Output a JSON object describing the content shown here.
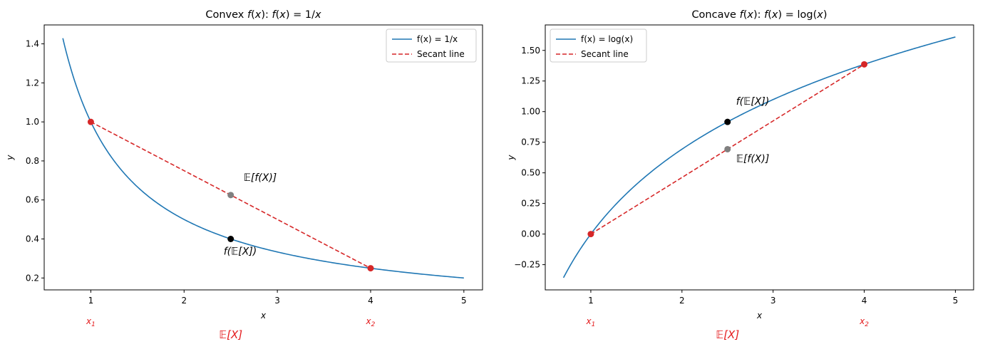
{
  "chart_data": [
    {
      "type": "line",
      "title": "Convex f(x): f(x) = 1/x",
      "title_parts": [
        "Convex ",
        "f",
        "(",
        "x",
        "): ",
        "f",
        "(",
        "x",
        ") = 1/",
        "x"
      ],
      "xlabel": "x",
      "ylabel": "y",
      "xlim": [
        0.5,
        5.2
      ],
      "ylim": [
        0.139,
        1.497
      ],
      "xticks": [
        1,
        2,
        3,
        4,
        5
      ],
      "xtick_labels": [
        "1",
        "2",
        "3",
        "4",
        "5"
      ],
      "yticks": [
        0.2,
        0.4,
        0.6,
        0.8,
        1.0,
        1.2,
        1.4
      ],
      "ytick_labels": [
        "0.2",
        "0.4",
        "0.6",
        "0.8",
        "1.0",
        "1.2",
        "1.4"
      ],
      "function": "reciprocal",
      "curve_domain": [
        0.7,
        5.0
      ],
      "x1": 1,
      "x2": 4,
      "ex": 2.5,
      "secant": {
        "x": [
          1,
          4
        ],
        "y": [
          1.0,
          0.25
        ]
      },
      "points": {
        "endpoints": {
          "x": [
            1,
            4
          ],
          "y": [
            1.0,
            0.25
          ]
        },
        "f_of_mean": {
          "x": 2.5,
          "y": 0.4
        },
        "mean_of_f": {
          "x": 2.5,
          "y": 0.625
        }
      },
      "legend": {
        "location": "upper right",
        "entries": [
          "f(x) = 1/x",
          "Secant line"
        ]
      },
      "annotations": {
        "mean_of_f_label": "𝔼[f(X)]",
        "f_of_mean_label": "f(𝔼[X])"
      },
      "x1_label": {
        "base": "x",
        "sub": "1"
      },
      "x2_label": {
        "base": "x",
        "sub": "2"
      },
      "ex_label": "𝔼[X]"
    },
    {
      "type": "line",
      "title": "Concave f(x): f(x) = log(x)",
      "title_parts": [
        "Concave ",
        "f",
        "(",
        "x",
        "): ",
        "f",
        "(",
        "x",
        ") = log(",
        "x",
        ")"
      ],
      "xlabel": "x",
      "ylabel": "y",
      "xlim": [
        0.5,
        5.2
      ],
      "ylim": [
        -0.456,
        1.708
      ],
      "xticks": [
        1,
        2,
        3,
        4,
        5
      ],
      "xtick_labels": [
        "1",
        "2",
        "3",
        "4",
        "5"
      ],
      "yticks": [
        -0.25,
        0.0,
        0.25,
        0.5,
        0.75,
        1.0,
        1.25,
        1.5
      ],
      "ytick_labels": [
        "−0.25",
        "0.00",
        "0.25",
        "0.50",
        "0.75",
        "1.00",
        "1.25",
        "1.50"
      ],
      "function": "log",
      "curve_domain": [
        0.7,
        5.0
      ],
      "x1": 1,
      "x2": 4,
      "ex": 2.5,
      "secant": {
        "x": [
          1,
          4
        ],
        "y": [
          0.0,
          1.386
        ]
      },
      "points": {
        "endpoints": {
          "x": [
            1,
            4
          ],
          "y": [
            0.0,
            1.386
          ]
        },
        "f_of_mean": {
          "x": 2.5,
          "y": 0.916
        },
        "mean_of_f": {
          "x": 2.5,
          "y": 0.693
        }
      },
      "legend": {
        "location": "upper left",
        "entries": [
          "f(x) = log(x)",
          "Secant line"
        ]
      },
      "annotations": {
        "f_of_mean_label": "f(𝔼[X])",
        "mean_of_f_label": "𝔼[f(X)]"
      },
      "x1_label": {
        "base": "x",
        "sub": "1"
      },
      "x2_label": {
        "base": "x",
        "sub": "2"
      },
      "ex_label": "𝔼[X]"
    }
  ],
  "colors": {
    "curve": "#1f77b4",
    "secant": "#d62728",
    "f_of_mean_point": "#000000",
    "mean_of_f_point": "#808080",
    "x_markers": "#e41a1c",
    "axis": "#000000",
    "legend_border": "#cccccc"
  }
}
